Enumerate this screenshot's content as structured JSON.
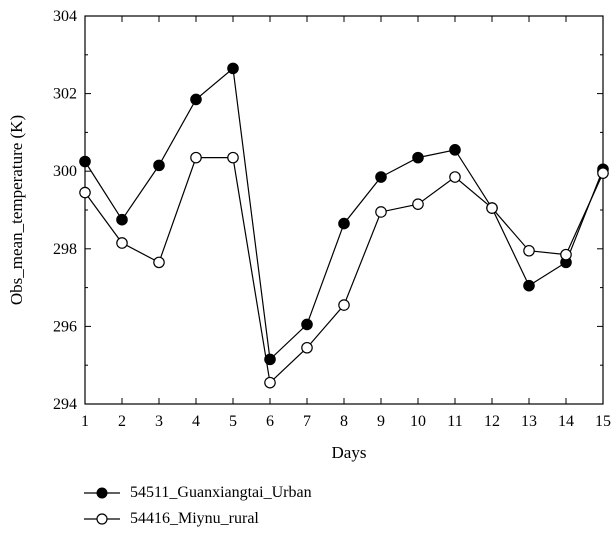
{
  "chart_data": {
    "type": "line",
    "xlabel": "Days",
    "ylabel": "Obs_mean_temperature (K)",
    "x": [
      1,
      2,
      3,
      4,
      5,
      6,
      7,
      8,
      9,
      10,
      11,
      12,
      13,
      14,
      15
    ],
    "xlim": [
      1,
      15
    ],
    "ylim": [
      294,
      304
    ],
    "yticks": [
      294,
      296,
      298,
      300,
      302,
      304
    ],
    "xticks": [
      1,
      2,
      3,
      4,
      5,
      6,
      7,
      8,
      9,
      10,
      11,
      12,
      13,
      14,
      15
    ],
    "grid": false,
    "legend_position": "bottom-left, below plot",
    "series": [
      {
        "name": "54511_Guanxiangtai_Urban",
        "marker": "filled-circle",
        "color": "#000000",
        "values": [
          300.25,
          298.75,
          300.15,
          301.85,
          302.65,
          295.15,
          296.05,
          298.65,
          299.85,
          300.35,
          300.55,
          299.05,
          297.05,
          297.65,
          300.05
        ]
      },
      {
        "name": "54416_Miynu_rural",
        "marker": "open-circle",
        "color": "#000000",
        "values": [
          299.45,
          298.15,
          297.65,
          300.35,
          300.35,
          294.55,
          295.45,
          296.55,
          298.95,
          299.15,
          299.85,
          299.05,
          297.95,
          297.85,
          299.95
        ]
      }
    ]
  }
}
